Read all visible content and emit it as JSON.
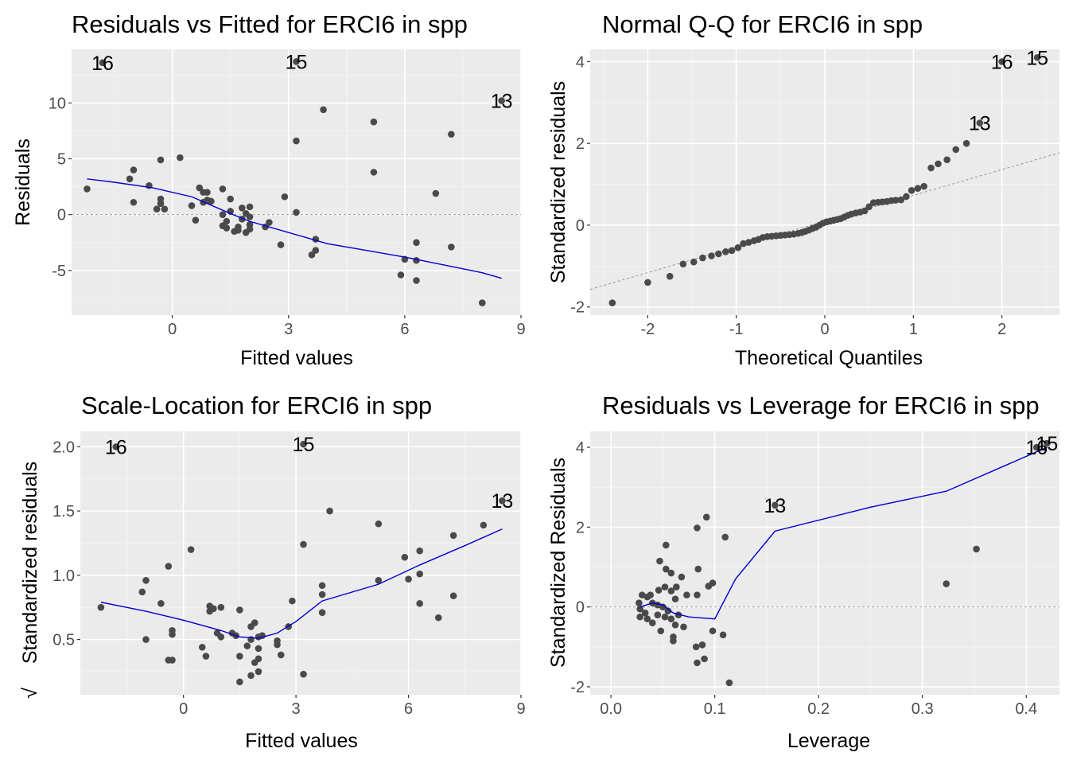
{
  "chart_data": [
    {
      "id": "resfit",
      "type": "scatter",
      "title": "Residuals vs Fitted for ERCI6 in spp",
      "xlabel": "Fitted values",
      "ylabel": "Residuals",
      "xlim": [
        -2.6,
        9.0
      ],
      "ylim": [
        -9.0,
        14.8
      ],
      "xticks": [
        0,
        3,
        6,
        9
      ],
      "xtick_labels": [
        "0",
        "3",
        "6",
        "9"
      ],
      "yticks": [
        -5,
        0,
        5,
        10
      ],
      "ytick_labels": [
        "-5",
        "0",
        "5",
        "10"
      ],
      "grid": true,
      "reference_line": {
        "type": "hline",
        "y": 0
      },
      "points": [
        [
          -1.8,
          13.6
        ],
        [
          3.2,
          13.7
        ],
        [
          8.5,
          10.2
        ],
        [
          3.9,
          9.4
        ],
        [
          5.2,
          8.3
        ],
        [
          7.2,
          7.2
        ],
        [
          3.2,
          6.6
        ],
        [
          0.2,
          5.1
        ],
        [
          -0.3,
          4.9
        ],
        [
          -1.0,
          4.0
        ],
        [
          5.2,
          3.8
        ],
        [
          -1.1,
          3.2
        ],
        [
          -0.6,
          2.6
        ],
        [
          0.7,
          2.4
        ],
        [
          1.3,
          2.3
        ],
        [
          -2.2,
          2.3
        ],
        [
          0.9,
          2.0
        ],
        [
          0.8,
          2.0
        ],
        [
          6.8,
          1.9
        ],
        [
          2.9,
          1.6
        ],
        [
          1.5,
          1.4
        ],
        [
          -0.3,
          1.4
        ],
        [
          0.9,
          1.3
        ],
        [
          1.0,
          1.2
        ],
        [
          -1.0,
          1.1
        ],
        [
          0.8,
          1.1
        ],
        [
          -0.3,
          1.0
        ],
        [
          0.5,
          0.8
        ],
        [
          2.0,
          0.7
        ],
        [
          1.8,
          0.6
        ],
        [
          -0.4,
          0.5
        ],
        [
          -0.2,
          0.5
        ],
        [
          1.5,
          0.3
        ],
        [
          3.2,
          0.2
        ],
        [
          1.9,
          0.1
        ],
        [
          1.3,
          0.0
        ],
        [
          2.0,
          -0.2
        ],
        [
          1.8,
          -0.4
        ],
        [
          0.6,
          -0.5
        ],
        [
          1.4,
          -0.6
        ],
        [
          2.5,
          -0.7
        ],
        [
          2.0,
          -0.9
        ],
        [
          1.3,
          -1.0
        ],
        [
          1.7,
          -1.1
        ],
        [
          2.4,
          -1.1
        ],
        [
          1.4,
          -1.2
        ],
        [
          2.0,
          -1.3
        ],
        [
          1.7,
          -1.4
        ],
        [
          1.6,
          -1.5
        ],
        [
          1.9,
          -1.6
        ],
        [
          3.7,
          -2.2
        ],
        [
          6.3,
          -2.5
        ],
        [
          2.8,
          -2.7
        ],
        [
          7.2,
          -2.9
        ],
        [
          3.7,
          -3.2
        ],
        [
          3.6,
          -3.6
        ],
        [
          6.0,
          -4.0
        ],
        [
          6.3,
          -4.1
        ],
        [
          5.9,
          -5.4
        ],
        [
          6.3,
          -5.9
        ],
        [
          8.0,
          -7.9
        ]
      ],
      "smooth_line": [
        [
          -2.2,
          3.2
        ],
        [
          -1.5,
          2.9
        ],
        [
          -0.5,
          2.4
        ],
        [
          0.5,
          1.6
        ],
        [
          1.5,
          0.1
        ],
        [
          2.0,
          -0.6
        ],
        [
          3.0,
          -1.6
        ],
        [
          4.0,
          -2.6
        ],
        [
          5.0,
          -3.2
        ],
        [
          6.0,
          -3.8
        ],
        [
          7.0,
          -4.5
        ],
        [
          8.0,
          -5.2
        ],
        [
          8.5,
          -5.7
        ]
      ],
      "labels": [
        {
          "text": "16",
          "x": -1.8,
          "y": 13.6
        },
        {
          "text": "15",
          "x": 3.2,
          "y": 13.7
        },
        {
          "text": "13",
          "x": 8.5,
          "y": 10.2
        }
      ]
    },
    {
      "id": "qq",
      "type": "scatter",
      "title": "Normal Q-Q for ERCI6 in spp",
      "xlabel": "Theoretical Quantiles",
      "ylabel": "Standardized residuals",
      "xlim": [
        -2.65,
        2.65
      ],
      "ylim": [
        -2.2,
        4.3
      ],
      "xticks": [
        -2,
        -1,
        0,
        1,
        2
      ],
      "xtick_labels": [
        "-2",
        "-1",
        "0",
        "1",
        "2"
      ],
      "yticks": [
        -2,
        0,
        2,
        4
      ],
      "ytick_labels": [
        "-2",
        "0",
        "2",
        "4"
      ],
      "grid": true,
      "reference_line": {
        "type": "abline",
        "intercept": 0.1,
        "slope": 0.63
      },
      "points": [
        [
          -2.4,
          -1.9
        ],
        [
          -2.0,
          -1.4
        ],
        [
          -1.75,
          -1.25
        ],
        [
          -1.6,
          -0.95
        ],
        [
          -1.48,
          -0.9
        ],
        [
          -1.38,
          -0.8
        ],
        [
          -1.28,
          -0.75
        ],
        [
          -1.2,
          -0.7
        ],
        [
          -1.12,
          -0.65
        ],
        [
          -1.05,
          -0.62
        ],
        [
          -0.98,
          -0.55
        ],
        [
          -0.92,
          -0.45
        ],
        [
          -0.86,
          -0.42
        ],
        [
          -0.8,
          -0.38
        ],
        [
          -0.75,
          -0.35
        ],
        [
          -0.7,
          -0.3
        ],
        [
          -0.65,
          -0.28
        ],
        [
          -0.6,
          -0.27
        ],
        [
          -0.55,
          -0.26
        ],
        [
          -0.5,
          -0.25
        ],
        [
          -0.45,
          -0.24
        ],
        [
          -0.4,
          -0.23
        ],
        [
          -0.35,
          -0.22
        ],
        [
          -0.3,
          -0.2
        ],
        [
          -0.26,
          -0.18
        ],
        [
          -0.22,
          -0.15
        ],
        [
          -0.18,
          -0.12
        ],
        [
          -0.14,
          -0.08
        ],
        [
          -0.1,
          -0.05
        ],
        [
          -0.06,
          0.0
        ],
        [
          -0.02,
          0.05
        ],
        [
          0.02,
          0.08
        ],
        [
          0.06,
          0.1
        ],
        [
          0.1,
          0.12
        ],
        [
          0.14,
          0.14
        ],
        [
          0.18,
          0.16
        ],
        [
          0.22,
          0.2
        ],
        [
          0.26,
          0.24
        ],
        [
          0.3,
          0.27
        ],
        [
          0.35,
          0.3
        ],
        [
          0.4,
          0.32
        ],
        [
          0.45,
          0.35
        ],
        [
          0.5,
          0.45
        ],
        [
          0.55,
          0.55
        ],
        [
          0.6,
          0.56
        ],
        [
          0.65,
          0.57
        ],
        [
          0.7,
          0.58
        ],
        [
          0.75,
          0.6
        ],
        [
          0.8,
          0.61
        ],
        [
          0.86,
          0.62
        ],
        [
          0.92,
          0.7
        ],
        [
          0.98,
          0.85
        ],
        [
          1.05,
          0.9
        ],
        [
          1.12,
          0.95
        ],
        [
          1.2,
          1.4
        ],
        [
          1.28,
          1.5
        ],
        [
          1.38,
          1.6
        ],
        [
          1.48,
          1.85
        ],
        [
          1.6,
          2.0
        ],
        [
          1.75,
          2.5
        ],
        [
          2.0,
          4.0
        ],
        [
          2.4,
          4.1
        ]
      ],
      "labels": [
        {
          "text": "16",
          "x": 2.0,
          "y": 4.0
        },
        {
          "text": "15",
          "x": 2.4,
          "y": 4.1
        },
        {
          "text": "13",
          "x": 1.75,
          "y": 2.5
        }
      ]
    },
    {
      "id": "scaleloc",
      "type": "scatter",
      "title": "Scale-Location for ERCI6 in spp",
      "xlabel": "Fitted values",
      "ylabel": "Standardized residuals",
      "ylabel_prefix": "√",
      "xlim": [
        -2.75,
        9.0
      ],
      "ylim": [
        0.07,
        2.12
      ],
      "xticks": [
        0,
        3,
        6,
        9
      ],
      "xtick_labels": [
        "0",
        "3",
        "6",
        "9"
      ],
      "yticks": [
        0.5,
        1.0,
        1.5,
        2.0
      ],
      "ytick_labels": [
        "0.5",
        "1.0",
        "1.5",
        "2.0"
      ],
      "grid": true,
      "points": [
        [
          -1.8,
          2.0
        ],
        [
          3.2,
          2.02
        ],
        [
          8.5,
          1.58
        ],
        [
          3.9,
          1.5
        ],
        [
          5.2,
          1.4
        ],
        [
          8.0,
          1.39
        ],
        [
          7.2,
          1.31
        ],
        [
          3.2,
          1.24
        ],
        [
          0.2,
          1.2
        ],
        [
          6.3,
          1.19
        ],
        [
          5.9,
          1.14
        ],
        [
          -0.4,
          1.07
        ],
        [
          6.3,
          1.01
        ],
        [
          -1.0,
          0.96
        ],
        [
          6.0,
          0.97
        ],
        [
          5.2,
          0.96
        ],
        [
          3.7,
          0.92
        ],
        [
          -1.1,
          0.87
        ],
        [
          3.7,
          0.85
        ],
        [
          7.2,
          0.84
        ],
        [
          -0.6,
          0.78
        ],
        [
          2.9,
          0.8
        ],
        [
          6.3,
          0.78
        ],
        [
          0.7,
          0.76
        ],
        [
          0.8,
          0.74
        ],
        [
          1.0,
          0.75
        ],
        [
          0.7,
          0.72
        ],
        [
          1.5,
          0.73
        ],
        [
          3.7,
          0.71
        ],
        [
          6.8,
          0.67
        ],
        [
          1.9,
          0.63
        ],
        [
          1.8,
          0.6
        ],
        [
          2.8,
          0.6
        ],
        [
          -2.2,
          0.75
        ],
        [
          -0.3,
          0.57
        ],
        [
          -0.3,
          0.54
        ],
        [
          0.9,
          0.55
        ],
        [
          1.0,
          0.52
        ],
        [
          1.3,
          0.55
        ],
        [
          1.4,
          0.53
        ],
        [
          2.0,
          0.52
        ],
        [
          2.1,
          0.53
        ],
        [
          2.5,
          0.49
        ],
        [
          -1.0,
          0.5
        ],
        [
          1.8,
          0.5
        ],
        [
          0.5,
          0.44
        ],
        [
          2.0,
          0.43
        ],
        [
          2.5,
          0.46
        ],
        [
          1.7,
          0.45
        ],
        [
          1.5,
          0.37
        ],
        [
          0.6,
          0.37
        ],
        [
          2.6,
          0.38
        ],
        [
          -0.4,
          0.34
        ],
        [
          -0.3,
          0.34
        ],
        [
          1.9,
          0.32
        ],
        [
          2.0,
          0.35
        ],
        [
          3.2,
          0.23
        ],
        [
          1.8,
          0.22
        ],
        [
          2.0,
          0.25
        ],
        [
          1.5,
          0.17
        ]
      ],
      "smooth_line": [
        [
          -2.2,
          0.79
        ],
        [
          -1.0,
          0.72
        ],
        [
          0.0,
          0.65
        ],
        [
          1.0,
          0.57
        ],
        [
          1.5,
          0.52
        ],
        [
          2.0,
          0.51
        ],
        [
          2.5,
          0.55
        ],
        [
          3.0,
          0.64
        ],
        [
          3.7,
          0.8
        ],
        [
          5.2,
          0.93
        ],
        [
          6.3,
          1.08
        ],
        [
          7.5,
          1.23
        ],
        [
          8.5,
          1.36
        ]
      ],
      "labels": [
        {
          "text": "16",
          "x": -1.8,
          "y": 2.0
        },
        {
          "text": "15",
          "x": 3.2,
          "y": 2.02
        },
        {
          "text": "13",
          "x": 8.5,
          "y": 1.58
        }
      ]
    },
    {
      "id": "resleverage",
      "type": "scatter",
      "title": "Residuals vs Leverage for ERCI6 in spp",
      "xlabel": "Leverage",
      "ylabel": "Standardized Residuals",
      "xlim": [
        -0.02,
        0.432
      ],
      "ylim": [
        -2.2,
        4.4
      ],
      "xticks": [
        0.0,
        0.1,
        0.2,
        0.3,
        0.4
      ],
      "xtick_labels": [
        "0.0",
        "0.1",
        "0.2",
        "0.3",
        "0.4"
      ],
      "yticks": [
        -2,
        0,
        2,
        4
      ],
      "ytick_labels": [
        "-2",
        "0",
        "2",
        "4"
      ],
      "grid": true,
      "reference_line": {
        "type": "hline",
        "y": 0
      },
      "points": [
        [
          0.41,
          4.0
        ],
        [
          0.42,
          4.1
        ],
        [
          0.158,
          2.55
        ],
        [
          0.352,
          1.45
        ],
        [
          0.323,
          0.58
        ],
        [
          0.092,
          2.25
        ],
        [
          0.083,
          1.98
        ],
        [
          0.11,
          1.75
        ],
        [
          0.053,
          1.55
        ],
        [
          0.047,
          1.15
        ],
        [
          0.053,
          0.95
        ],
        [
          0.058,
          0.85
        ],
        [
          0.084,
          0.95
        ],
        [
          0.068,
          0.75
        ],
        [
          0.098,
          0.6
        ],
        [
          0.094,
          0.52
        ],
        [
          0.063,
          0.5
        ],
        [
          0.083,
          0.3
        ],
        [
          0.03,
          0.3
        ],
        [
          0.038,
          0.3
        ],
        [
          0.046,
          0.42
        ],
        [
          0.052,
          0.5
        ],
        [
          0.058,
          0.4
        ],
        [
          0.062,
          0.2
        ],
        [
          0.073,
          0.3
        ],
        [
          0.035,
          0.25
        ],
        [
          0.027,
          0.1
        ],
        [
          0.04,
          0.1
        ],
        [
          0.045,
          0.05
        ],
        [
          0.05,
          0.0
        ],
        [
          0.055,
          -0.1
        ],
        [
          0.065,
          -0.2
        ],
        [
          0.028,
          -0.05
        ],
        [
          0.033,
          -0.15
        ],
        [
          0.045,
          -0.2
        ],
        [
          0.052,
          -0.25
        ],
        [
          0.058,
          -0.3
        ],
        [
          0.035,
          -0.3
        ],
        [
          0.04,
          -0.4
        ],
        [
          0.07,
          -0.5
        ],
        [
          0.048,
          -0.6
        ],
        [
          0.06,
          -0.75
        ],
        [
          0.06,
          -0.85
        ],
        [
          0.098,
          -0.6
        ],
        [
          0.108,
          -0.7
        ],
        [
          0.082,
          -1.0
        ],
        [
          0.088,
          -0.95
        ],
        [
          0.083,
          -1.4
        ],
        [
          0.09,
          -1.3
        ],
        [
          0.114,
          -1.9
        ],
        [
          0.028,
          -0.25
        ],
        [
          0.062,
          -0.45
        ]
      ],
      "smooth_line": [
        [
          0.028,
          0.0
        ],
        [
          0.04,
          0.1
        ],
        [
          0.05,
          0.05
        ],
        [
          0.06,
          -0.15
        ],
        [
          0.075,
          -0.25
        ],
        [
          0.1,
          -0.3
        ],
        [
          0.12,
          0.7
        ],
        [
          0.158,
          1.9
        ],
        [
          0.25,
          2.5
        ],
        [
          0.323,
          2.9
        ],
        [
          0.42,
          4.0
        ]
      ],
      "labels": [
        {
          "text": "16",
          "x": 0.41,
          "y": 4.0
        },
        {
          "text": "15",
          "x": 0.42,
          "y": 4.1
        },
        {
          "text": "13",
          "x": 0.158,
          "y": 2.55
        }
      ]
    }
  ]
}
